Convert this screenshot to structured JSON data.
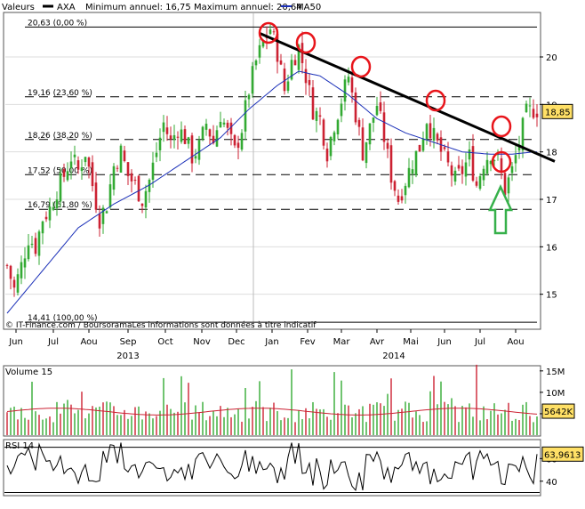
{
  "header": {
    "valeurs": "Valeurs",
    "ticker": "AXA",
    "range_text": "Minimum annuel: 16,75 Maximum annuel: 20,64",
    "ma_label": "MA50"
  },
  "colors": {
    "up": "#33aa33",
    "down": "#cc2233",
    "ma": "#1a2fb8",
    "trend": "#000000",
    "highlight": "#e8151b",
    "arrow": "#36b04a",
    "price_tag_bg": "#ffe066",
    "rsi_tag_bg": "#ffe066",
    "vol_tag_bg": "#ffe066",
    "volume_avg": "#cc2233"
  },
  "credit": "© IT-Finance.com / BoursoramaLes informations sont données à titre indicatif",
  "chart_data": {
    "type": "candlestick",
    "x_axis": {
      "months": [
        "Jun",
        "Jul",
        "Aou",
        "Sep",
        "Oct",
        "Nov",
        "Dec",
        "Jan",
        "Fev",
        "Mar",
        "Avr",
        "Mai",
        "Jun",
        "Jul",
        "Aou"
      ],
      "years": [
        "2013",
        "2014"
      ]
    },
    "price": {
      "y_ticks": [
        "15",
        "16",
        "17",
        "18",
        "19",
        "20"
      ],
      "ylim": [
        14.3,
        20.9
      ],
      "last": 18.85,
      "last_label": "18,85",
      "fibonacci": [
        {
          "value": 20.63,
          "label": "20,63 (0,00 %)"
        },
        {
          "value": 19.16,
          "label": "19,16 (23,60 %)"
        },
        {
          "value": 18.26,
          "label": "18,26 (38,20 %)"
        },
        {
          "value": 17.52,
          "label": "17,52 (50,00 %)"
        },
        {
          "value": 16.79,
          "label": "16,79 (61,80 %)"
        },
        {
          "value": 14.41,
          "label": "14,41 (100,00 %)"
        }
      ],
      "close_path": [
        [
          0,
          15.6
        ],
        [
          2,
          15.1
        ],
        [
          4,
          15.6
        ],
        [
          6,
          16.2
        ],
        [
          8,
          16.0
        ],
        [
          10,
          16.6
        ],
        [
          12,
          16.8
        ],
        [
          14,
          17.2
        ],
        [
          16,
          17.5
        ],
        [
          18,
          17.9
        ],
        [
          20,
          17.6
        ],
        [
          22,
          18.0
        ],
        [
          24,
          17.3
        ],
        [
          26,
          16.6
        ],
        [
          28,
          16.9
        ],
        [
          30,
          17.7
        ],
        [
          32,
          18.0
        ],
        [
          34,
          17.5
        ],
        [
          36,
          17.3
        ],
        [
          38,
          17.0
        ],
        [
          40,
          17.4
        ],
        [
          42,
          18.0
        ],
        [
          44,
          18.6
        ],
        [
          46,
          18.2
        ],
        [
          48,
          18.5
        ],
        [
          50,
          18.3
        ],
        [
          52,
          17.9
        ],
        [
          54,
          18.1
        ],
        [
          56,
          18.6
        ],
        [
          58,
          18.2
        ],
        [
          60,
          18.8
        ],
        [
          62,
          18.4
        ],
        [
          64,
          18.0
        ],
        [
          66,
          18.5
        ],
        [
          68,
          19.3
        ],
        [
          70,
          19.9
        ],
        [
          72,
          20.3
        ],
        [
          74,
          20.6
        ],
        [
          76,
          20.1
        ],
        [
          78,
          19.3
        ],
        [
          80,
          19.9
        ],
        [
          82,
          20.2
        ],
        [
          84,
          19.6
        ],
        [
          86,
          18.9
        ],
        [
          88,
          18.7
        ],
        [
          90,
          18.0
        ],
        [
          92,
          18.6
        ],
        [
          94,
          19.1
        ],
        [
          96,
          19.6
        ],
        [
          98,
          18.8
        ],
        [
          100,
          18.0
        ],
        [
          102,
          18.5
        ],
        [
          104,
          19.0
        ],
        [
          106,
          18.3
        ],
        [
          108,
          17.5
        ],
        [
          110,
          17.0
        ],
        [
          112,
          17.4
        ],
        [
          114,
          17.8
        ],
        [
          116,
          18.1
        ],
        [
          118,
          18.7
        ],
        [
          120,
          18.3
        ],
        [
          122,
          18.0
        ],
        [
          124,
          17.7
        ],
        [
          126,
          17.4
        ],
        [
          128,
          17.6
        ],
        [
          130,
          17.9
        ],
        [
          132,
          17.3
        ],
        [
          134,
          17.8
        ],
        [
          136,
          18.0
        ],
        [
          138,
          17.8
        ],
        [
          140,
          17.2
        ],
        [
          142,
          17.6
        ],
        [
          144,
          18.2
        ],
        [
          146,
          18.8
        ],
        [
          148,
          18.9
        ]
      ],
      "ma50_path": [
        [
          0,
          14.6
        ],
        [
          10,
          15.5
        ],
        [
          20,
          16.4
        ],
        [
          30,
          16.9
        ],
        [
          40,
          17.3
        ],
        [
          50,
          17.8
        ],
        [
          60,
          18.3
        ],
        [
          68,
          18.9
        ],
        [
          76,
          19.4
        ],
        [
          82,
          19.7
        ],
        [
          88,
          19.6
        ],
        [
          96,
          19.2
        ],
        [
          104,
          18.7
        ],
        [
          112,
          18.4
        ],
        [
          120,
          18.2
        ],
        [
          128,
          18.0
        ],
        [
          136,
          17.95
        ],
        [
          142,
          17.95
        ],
        [
          148,
          18.0
        ]
      ],
      "trend_line": [
        [
          71,
          20.5
        ],
        [
          150,
          17.8
        ]
      ]
    },
    "volume": {
      "title": "Volume 15",
      "y_ticks": [
        "15M",
        "10M",
        "5M"
      ],
      "ylim": [
        0,
        16
      ],
      "last_label": "5642K"
    },
    "rsi": {
      "title": "RSI 14",
      "y_ticks": [
        "60",
        "40"
      ],
      "ylim": [
        28,
        76
      ],
      "last_label": "63,9613"
    }
  }
}
